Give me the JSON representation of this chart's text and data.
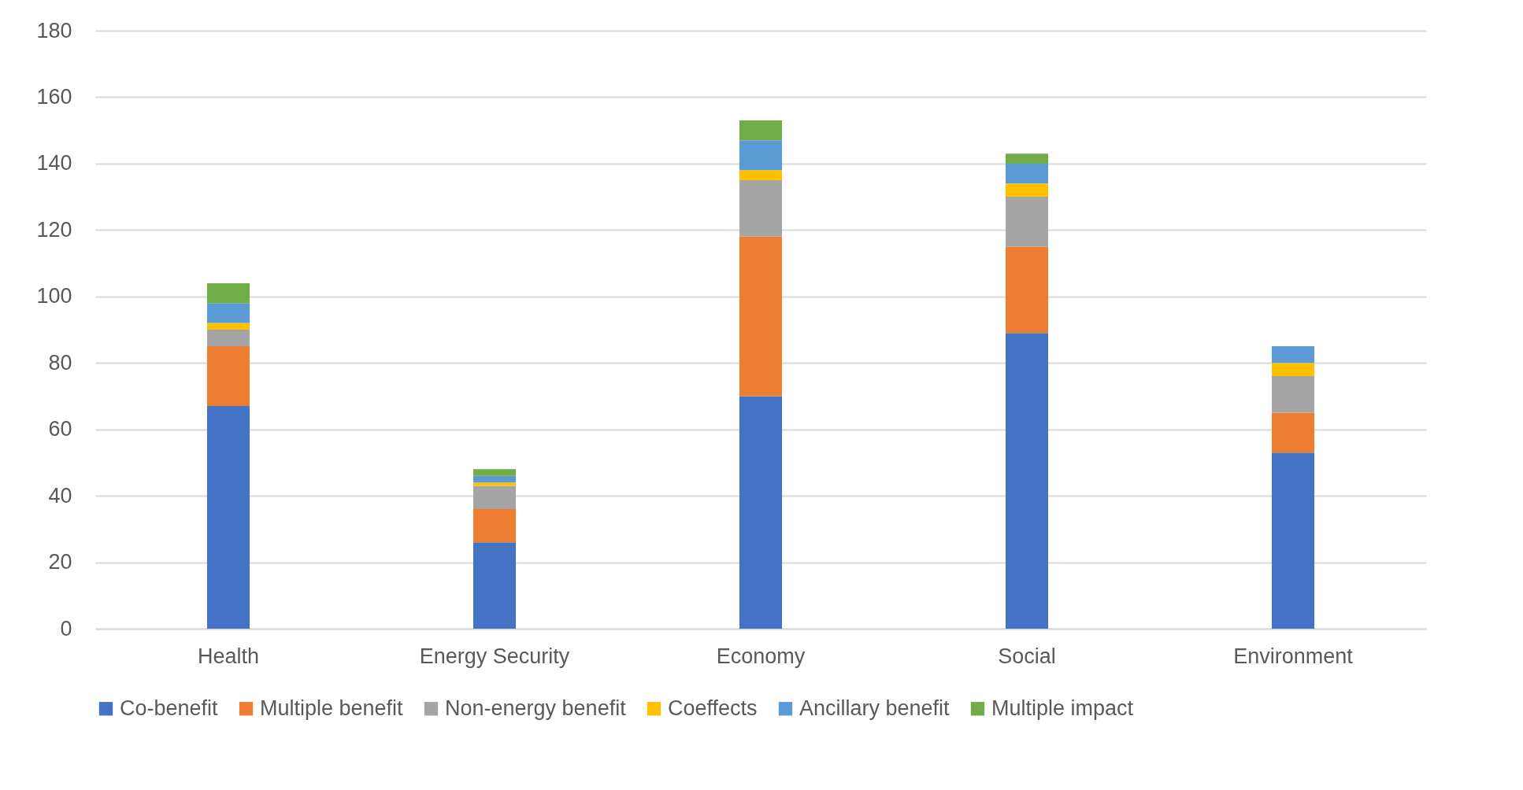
{
  "chart_data": {
    "type": "bar",
    "stacked": true,
    "categories": [
      "Health",
      "Energy Security",
      "Economy",
      "Social",
      "Environment"
    ],
    "series": [
      {
        "name": "Co-benefit",
        "color": "#4472c4",
        "values": [
          67,
          26,
          70,
          89,
          53
        ]
      },
      {
        "name": "Multiple benefit",
        "color": "#ed7d31",
        "values": [
          18,
          10,
          48,
          26,
          12
        ]
      },
      {
        "name": "Non-energy benefit",
        "color": "#a5a5a5",
        "values": [
          5,
          7,
          17,
          15,
          11
        ]
      },
      {
        "name": "Coeffects",
        "color": "#ffc000",
        "values": [
          2,
          1,
          3,
          4,
          4
        ]
      },
      {
        "name": "Ancillary benefit",
        "color": "#5b9bd5",
        "values": [
          6,
          2,
          9,
          6,
          5
        ]
      },
      {
        "name": "Multiple impact",
        "color": "#70ad47",
        "values": [
          6,
          2,
          6,
          3,
          0
        ]
      }
    ],
    "ylim": [
      0,
      180
    ],
    "yticks": [
      0,
      20,
      40,
      60,
      80,
      100,
      120,
      140,
      160,
      180
    ],
    "grid": "y",
    "legend": "bottom"
  }
}
